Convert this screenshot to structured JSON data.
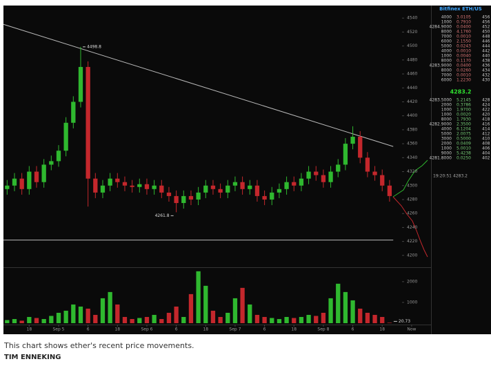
{
  "chart_data": {
    "type": "candlestick",
    "x": [
      1.5,
      4.5,
      7.5,
      10.5,
      13.5,
      16.5,
      19.5,
      22.5,
      25.5,
      28.5,
      31.5,
      34.5,
      37.5,
      40.5,
      43.5,
      46.5,
      49.5,
      52.5,
      55.5,
      58.5,
      61.5,
      64.5,
      67.5,
      70.5,
      73.5,
      76.5,
      79.5,
      82.5,
      85.5,
      88.5,
      91.5,
      94.5,
      97.5,
      100.5,
      103.5,
      106.5,
      109.5,
      112.5,
      115.5,
      118.5,
      121.5,
      124.5,
      127.5,
      130.5,
      133.5,
      136.5,
      139.5,
      142.5,
      145.5,
      148.5,
      151.5,
      154.5,
      157.5
    ],
    "open": [
      4295,
      4300,
      4310,
      4295,
      4320,
      4305,
      4330,
      4335,
      4350,
      4390,
      4420,
      4470,
      4310,
      4290,
      4300,
      4310,
      4305,
      4300,
      4298,
      4302,
      4295,
      4300,
      4290,
      4285,
      4275,
      4285,
      4280,
      4290,
      4300,
      4295,
      4290,
      4300,
      4305,
      4295,
      4300,
      4285,
      4280,
      4290,
      4295,
      4305,
      4300,
      4310,
      4320,
      4315,
      4305,
      4320,
      4330,
      4360,
      4370,
      4340,
      4320,
      4315,
      4300
    ],
    "high": [
      4308,
      4318,
      4318,
      4328,
      4328,
      4338,
      4343,
      4358,
      4398,
      4428,
      4498.8,
      4478,
      4318,
      4308,
      4318,
      4318,
      4313,
      4308,
      4310,
      4310,
      4308,
      4308,
      4298,
      4293,
      4293,
      4293,
      4298,
      4308,
      4308,
      4303,
      4308,
      4313,
      4313,
      4308,
      4308,
      4293,
      4298,
      4303,
      4313,
      4313,
      4318,
      4328,
      4328,
      4323,
      4328,
      4338,
      4368,
      4385,
      4378,
      4348,
      4328,
      4323,
      4308
    ],
    "low": [
      4287,
      4292,
      4287,
      4287,
      4297,
      4297,
      4322,
      4327,
      4342,
      4382,
      4412,
      4270,
      4282,
      4282,
      4292,
      4297,
      4292,
      4290,
      4290,
      4287,
      4287,
      4282,
      4277,
      4261.8,
      4267,
      4272,
      4272,
      4282,
      4287,
      4282,
      4282,
      4292,
      4287,
      4287,
      4277,
      4272,
      4272,
      4282,
      4287,
      4292,
      4292,
      4302,
      4307,
      4297,
      4297,
      4312,
      4322,
      4352,
      4332,
      4312,
      4307,
      4292,
      4277
    ],
    "close": [
      4300,
      4310,
      4295,
      4320,
      4305,
      4330,
      4335,
      4350,
      4390,
      4420,
      4470,
      4310,
      4290,
      4300,
      4310,
      4305,
      4300,
      4298,
      4302,
      4295,
      4300,
      4290,
      4285,
      4275,
      4285,
      4280,
      4290,
      4300,
      4295,
      4290,
      4300,
      4305,
      4295,
      4300,
      4285,
      4280,
      4290,
      4295,
      4305,
      4300,
      4310,
      4320,
      4315,
      4305,
      4320,
      4330,
      4360,
      4370,
      4340,
      4320,
      4315,
      4300,
      4285
    ],
    "volume": [
      150,
      200,
      120,
      300,
      250,
      200,
      350,
      500,
      600,
      900,
      800,
      700,
      400,
      1200,
      1500,
      900,
      300,
      200,
      250,
      300,
      400,
      200,
      500,
      800,
      300,
      1400,
      2500,
      1800,
      600,
      300,
      500,
      1200,
      1700,
      900,
      400,
      300,
      250,
      200,
      300,
      250,
      300,
      400,
      350,
      500,
      1200,
      1900,
      1500,
      1100,
      700,
      500,
      400,
      300,
      20.73
    ],
    "up_color": "#2fb82f",
    "down_color": "#c4272c",
    "xlim": [
      0,
      173
    ],
    "xticks": [
      {
        "value": 10.5,
        "label": "18"
      },
      {
        "value": 22.5,
        "label": "Sep 5"
      },
      {
        "value": 34.5,
        "label": "6"
      },
      {
        "value": 46.5,
        "label": "18"
      },
      {
        "value": 58.5,
        "label": "Sep 6"
      },
      {
        "value": 70.5,
        "label": "6"
      },
      {
        "value": 82.5,
        "label": "18"
      },
      {
        "value": 94.5,
        "label": "Sep 7"
      },
      {
        "value": 106.5,
        "label": "6"
      },
      {
        "value": 118.5,
        "label": "18"
      },
      {
        "value": 130.5,
        "label": "Sep 8"
      },
      {
        "value": 142.5,
        "label": "6"
      },
      {
        "value": 154.5,
        "label": "18"
      },
      {
        "value": 166.5,
        "label": "Now"
      }
    ],
    "ylim": [
      4183,
      4558
    ],
    "yticks": [
      4200,
      4220,
      4240,
      4260,
      4280,
      4300,
      4320,
      4340,
      4360,
      4380,
      4400,
      4420,
      4440,
      4460,
      4480,
      4500,
      4520,
      4540
    ],
    "volume_ylim": [
      0,
      2660
    ],
    "volume_yticks": [
      1000,
      2000
    ],
    "annotations": [
      {
        "text": "4498.8",
        "x": 31.5,
        "y": 4498.8
      },
      {
        "text": "4261.8",
        "x": 70.5,
        "y": 4261.8
      }
    ],
    "trendlines": [
      {
        "x": [
          0,
          159
        ],
        "y": [
          4531,
          4356
        ]
      },
      {
        "x": [
          0,
          159
        ],
        "y": [
          4222,
          4222
        ]
      }
    ]
  },
  "order_book": {
    "title": "Bitfinex ETH/US",
    "asks": [
      [
        "4000",
        "3.0105",
        "456"
      ],
      [
        "1000",
        "0.7910",
        "456"
      ],
      [
        "4284.9000",
        "0.0400",
        "452"
      ],
      [
        "8000",
        "4.1760",
        "450"
      ],
      [
        "7000",
        "0.0010",
        "448"
      ],
      [
        "6000",
        "2.1550",
        "446"
      ],
      [
        "5000",
        "0.0243",
        "444"
      ],
      [
        "4000",
        "0.0010",
        "442"
      ],
      [
        "1000",
        "0.0040",
        "440"
      ],
      [
        "8000",
        "0.1170",
        "438"
      ],
      [
        "4283.9000",
        "0.0400",
        "436"
      ],
      [
        "8000",
        "0.0260",
        "434"
      ],
      [
        "7000",
        "0.0010",
        "432"
      ],
      [
        "6000",
        "1.2230",
        "430"
      ]
    ],
    "last_price": "4283.2",
    "bids": [
      [
        "4283.5000",
        "5.2145",
        "428"
      ],
      [
        "2000",
        "0.3786",
        "424"
      ],
      [
        "1000",
        "1.9700",
        "422"
      ],
      [
        "1000",
        "0.0020",
        "420"
      ],
      [
        "8000",
        "1.7930",
        "418"
      ],
      [
        "4282.9000",
        "2.3500",
        "416"
      ],
      [
        "4000",
        "6.1204",
        "414"
      ],
      [
        "5000",
        "2.0075",
        "412"
      ],
      [
        "3000",
        "0.5000",
        "410"
      ],
      [
        "2000",
        "0.0409",
        "408"
      ],
      [
        "1000",
        "5.0010",
        "406"
      ],
      [
        "9000",
        "5.4238",
        "404"
      ],
      [
        "4281.8000",
        "0.0250",
        "402"
      ]
    ],
    "trade_time": "19:20:51",
    "trade_price": "4283.2"
  },
  "caption": {
    "text": "This chart shows ether's recent price movements.",
    "credit": "TIM ENNEKING"
  }
}
